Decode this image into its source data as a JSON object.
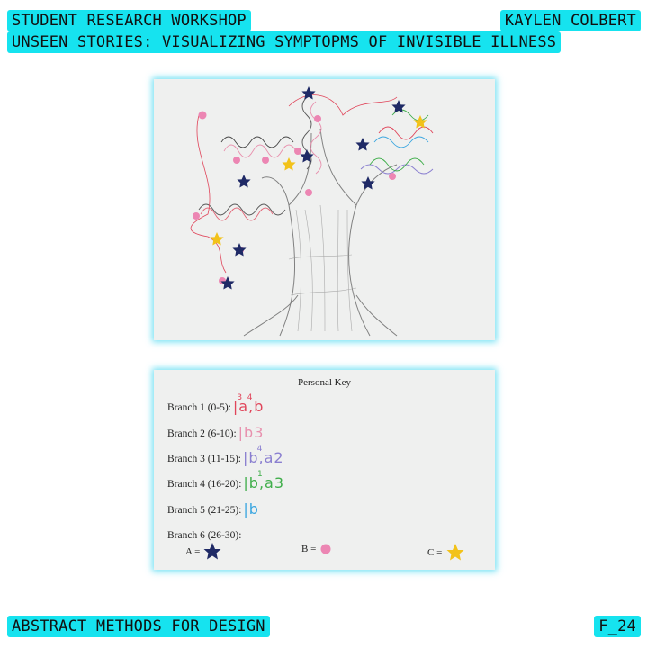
{
  "header": {
    "line1": "STUDENT RESEARCH WORKSHOP",
    "line2": "UNSEEN STORIES: VISUALIZING SYMPTOPMS OF INVISIBLE ILLNESS",
    "author": "KAYLEN COLBERT"
  },
  "footer": {
    "course": "ABSTRACT METHODS FOR DESIGN",
    "code": "F_24"
  },
  "drawing": {
    "subject": "hand-drawn tree with colored branch scribbles",
    "marker_icons": [
      "star-navy",
      "dot-pink",
      "star-yellow"
    ]
  },
  "key": {
    "title": "Personal Key",
    "rows": [
      {
        "label": "Branch 1 (0-5):",
        "ink": "|a,b",
        "sup": "3  4",
        "color": "#e0455a",
        "sup_color": "#e0455a"
      },
      {
        "label": "Branch 2 (6-10):",
        "ink": "|b3",
        "sup": "",
        "color": "#e891ae",
        "sup_color": "#e891ae"
      },
      {
        "label": "Branch 3 (11-15):",
        "ink": "|b,a2",
        "sup": "4",
        "color": "#8a7fd0",
        "sup_color": "#8a7fd0"
      },
      {
        "label": "Branch 4 (16-20):",
        "ink": "|b,a3",
        "sup": "1",
        "color": "#3fae4a",
        "sup_color": "#3fae4a"
      },
      {
        "label": "Branch 5 (21-25):",
        "ink": "|b",
        "sup": "",
        "color": "#3aa6e0",
        "sup_color": "#3aa6e0"
      },
      {
        "label": "Branch 6 (26-30):",
        "ink": "",
        "sup": "",
        "color": "#333333",
        "sup_color": "#333333"
      }
    ],
    "legend": [
      {
        "label": "A =",
        "icon": "star-icon",
        "color": "#1f2a66"
      },
      {
        "label": "B =",
        "icon": "dot-icon",
        "color": "#ec86b3"
      },
      {
        "label": "C =",
        "icon": "star-icon",
        "color": "#f2c21a"
      }
    ]
  },
  "colors": {
    "tag_background": "#16e3ef",
    "card_glow": "#46d7f0",
    "navy_star": "#1f2a66",
    "pink_dot": "#ec86b3",
    "yellow_star": "#f2c21a"
  }
}
